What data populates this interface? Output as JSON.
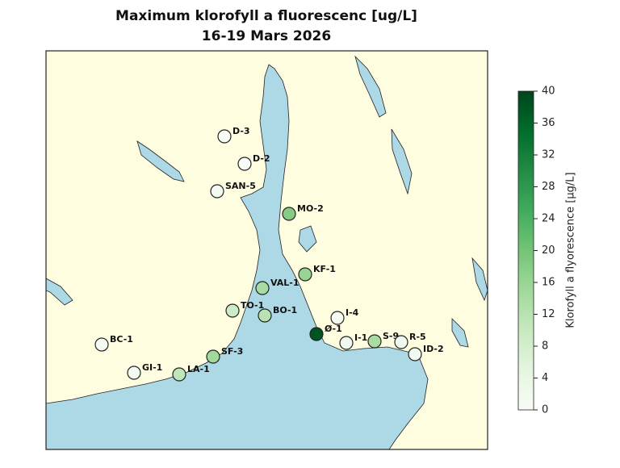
{
  "chart_data": {
    "type": "map",
    "title": "Maximum klorofyll a fluorescenc [ug/L]",
    "subtitle": "16-19 Mars 2026",
    "categories": [
      "D-3",
      "D-2",
      "SAN-5",
      "MO-2",
      "KF-1",
      "VAL-1",
      "TO-1",
      "BO-1",
      "I-4",
      "Ø-1",
      "I-1",
      "S-9",
      "R-5",
      "ID-2",
      "BC-1",
      "GI-1",
      "LA-1",
      "SF-3"
    ],
    "values": [
      0,
      0,
      1,
      18,
      16,
      14,
      9,
      12,
      1,
      38,
      2,
      14,
      2,
      1,
      1,
      1,
      11,
      15
    ],
    "clim": [
      0,
      40
    ],
    "cticks": [
      0,
      4,
      8,
      12,
      16,
      20,
      24,
      28,
      32,
      36,
      40
    ],
    "colorbar_label": "Klorofyll a flyorescence [µg/L]"
  }
}
